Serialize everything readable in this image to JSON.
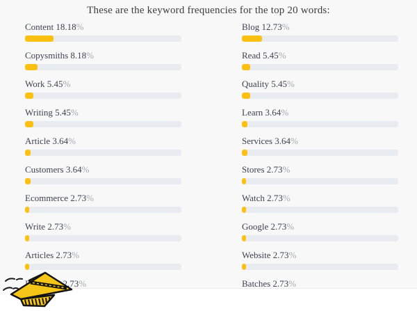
{
  "page": {
    "background": "#f8f8f8",
    "footer_background": "#ffffff"
  },
  "chart_data": {
    "type": "bar",
    "title": "These are the keyword frequencies for the top 20 words:",
    "unit": "%",
    "value_scale": [
      0,
      100
    ],
    "orientation": "horizontal",
    "grid": false,
    "legend": false,
    "track_color": "#e8ebef",
    "fill_color": "#fcc013",
    "columns": [
      {
        "items": [
          {
            "label": "Content",
            "value": 18.18
          },
          {
            "label": "Copysmiths",
            "value": 8.18
          },
          {
            "label": "Work",
            "value": 5.45
          },
          {
            "label": "Writing",
            "value": 5.45
          },
          {
            "label": "Article",
            "value": 3.64
          },
          {
            "label": "Customers",
            "value": 3.64
          },
          {
            "label": "Ecommerce",
            "value": 2.73
          },
          {
            "label": "Write",
            "value": 2.73
          },
          {
            "label": "Articles",
            "value": 2.73
          },
          {
            "label": "Published",
            "value": 2.73
          }
        ]
      },
      {
        "items": [
          {
            "label": "Blog",
            "value": 12.73
          },
          {
            "label": "Read",
            "value": 5.45
          },
          {
            "label": "Quality",
            "value": 5.45
          },
          {
            "label": "Learn",
            "value": 3.64
          },
          {
            "label": "Services",
            "value": 3.64
          },
          {
            "label": "Stores",
            "value": 2.73
          },
          {
            "label": "Watch",
            "value": 2.73
          },
          {
            "label": "Google",
            "value": 2.73
          },
          {
            "label": "Website",
            "value": 2.73
          },
          {
            "label": "Batches",
            "value": 2.73
          }
        ]
      }
    ]
  },
  "icons": {
    "paper_plane": "paper-plane-doodle"
  }
}
